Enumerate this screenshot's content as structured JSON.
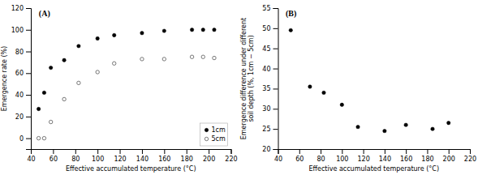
{
  "chart_data": [
    {
      "type": "scatter",
      "title": "(A)",
      "x_label": "Effective accumulated temperature (°C)",
      "y_label": "Emergence rate (%)",
      "x": [
        47,
        52,
        58,
        70,
        83,
        100,
        115,
        140,
        160,
        185,
        195,
        205
      ],
      "series": [
        {
          "name": "1cm",
          "color": "#000000",
          "marker": "circle",
          "values": [
            27,
            42,
            65,
            72,
            85,
            92,
            95,
            97,
            99,
            100,
            100,
            100
          ]
        },
        {
          "name": "5cm",
          "color": "#555555",
          "marker": "open-circle",
          "values": [
            0,
            0,
            15,
            36,
            51,
            61,
            69,
            73,
            73,
            75,
            75,
            74
          ]
        }
      ],
      "xlim": [
        40,
        220
      ],
      "xticks": [
        40,
        60,
        80,
        100,
        120,
        140,
        160,
        180,
        200,
        220
      ],
      "ylim": [
        -10,
        120
      ],
      "yticks": [
        0,
        20,
        40,
        60,
        80,
        100,
        120
      ],
      "legend": "lower right",
      "grid": false
    },
    {
      "type": "scatter",
      "title": "(B)",
      "x_label": "Effective accumulated temperature (°C)",
      "y_label": "Emergence difference under different\nsoil depth (%, 1cm − 5cm)",
      "x": [
        52,
        70,
        83,
        100,
        115,
        140,
        160,
        185,
        200
      ],
      "values": [
        49.5,
        35.5,
        34,
        31,
        25.5,
        24.5,
        26,
        25,
        26.5
      ],
      "color": "#000000",
      "marker": "circle",
      "xlim": [
        40,
        220
      ],
      "xticks": [
        40,
        60,
        80,
        100,
        120,
        140,
        160,
        180,
        200,
        220
      ],
      "ylim": [
        20,
        55
      ],
      "yticks": [
        20,
        25,
        30,
        35,
        40,
        45,
        50,
        55
      ],
      "grid": false
    }
  ]
}
